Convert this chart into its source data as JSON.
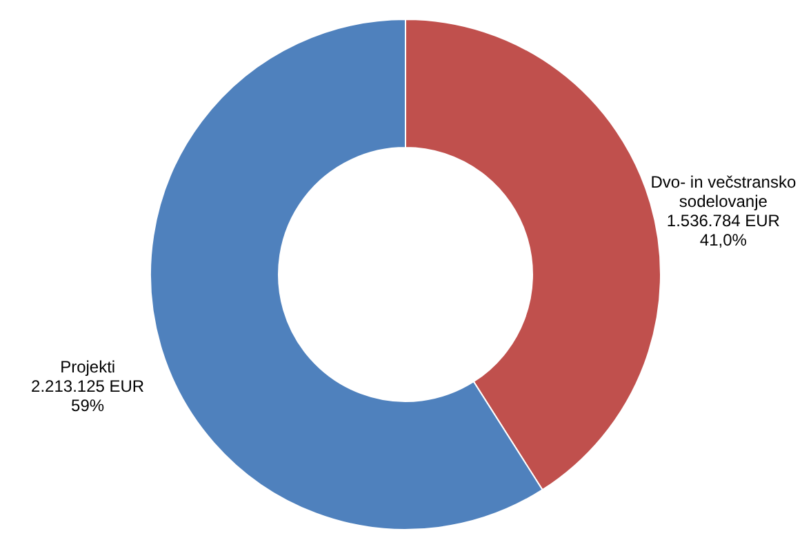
{
  "chart_data": {
    "type": "donut",
    "categories": [
      "Dvo- in večstransko sodelovanje",
      "Projekti"
    ],
    "values": [
      1536784,
      2213125
    ],
    "colors": [
      "#c0504d",
      "#4f81bd"
    ],
    "value_labels": [
      "1.536.784 EUR\n41,0%",
      "2.213.125 EUR\n59%"
    ],
    "legend": false
  }
}
